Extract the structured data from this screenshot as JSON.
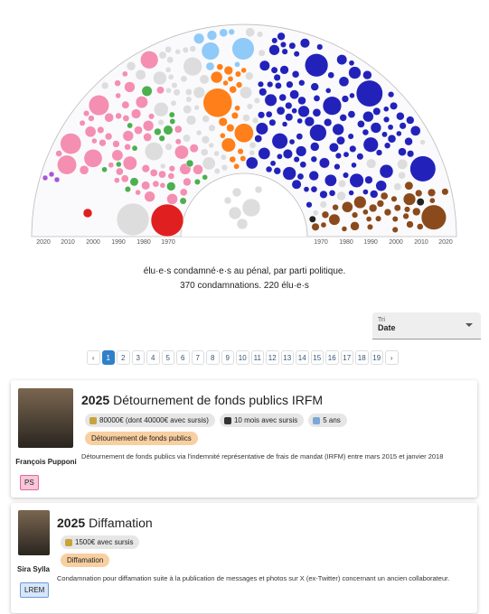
{
  "hemicycle": {
    "axis_left": [
      "2020",
      "2010",
      "2000",
      "1990",
      "1980",
      "1970"
    ],
    "axis_right": [
      "1970",
      "1980",
      "1990",
      "2000",
      "2010",
      "2020"
    ],
    "caption": [
      "élu·e·s condamné·e·s au pénal, par parti politique.",
      "370 condamnations. 220 élu·e·s"
    ]
  },
  "sort": {
    "label": "Tri",
    "value": "Date"
  },
  "pagination": [
    "1",
    "2",
    "3",
    "4",
    "5",
    "6",
    "7",
    "8",
    "9",
    "10",
    "11",
    "12",
    "13",
    "14",
    "15",
    "16",
    "17",
    "18",
    "19"
  ],
  "cards": [
    {
      "year": "2025",
      "title": "Détournement de fonds publics IRFM",
      "tags": [
        "80000€ (dont 40000€ avec sursis)",
        "10 mois avec sursis",
        "5 ans"
      ],
      "category": "Détournement de fonds publics",
      "person": "François Pupponi",
      "description": "Détournement de fonds publics via l'indemnité représentative de frais de mandat (IRFM) entre mars 2015 et janvier 2018",
      "party": "PS"
    },
    {
      "year": "2025",
      "title": "Diffamation",
      "tags": [
        "1500€ avec sursis"
      ],
      "category": "Diffamation",
      "person": "Sira Sylla",
      "description": "Condamnation pour diffamation suite à la publication de messages et photos sur X (ex-Twitter) concernant un ancien collaborateur.",
      "party": "LREM"
    }
  ]
}
